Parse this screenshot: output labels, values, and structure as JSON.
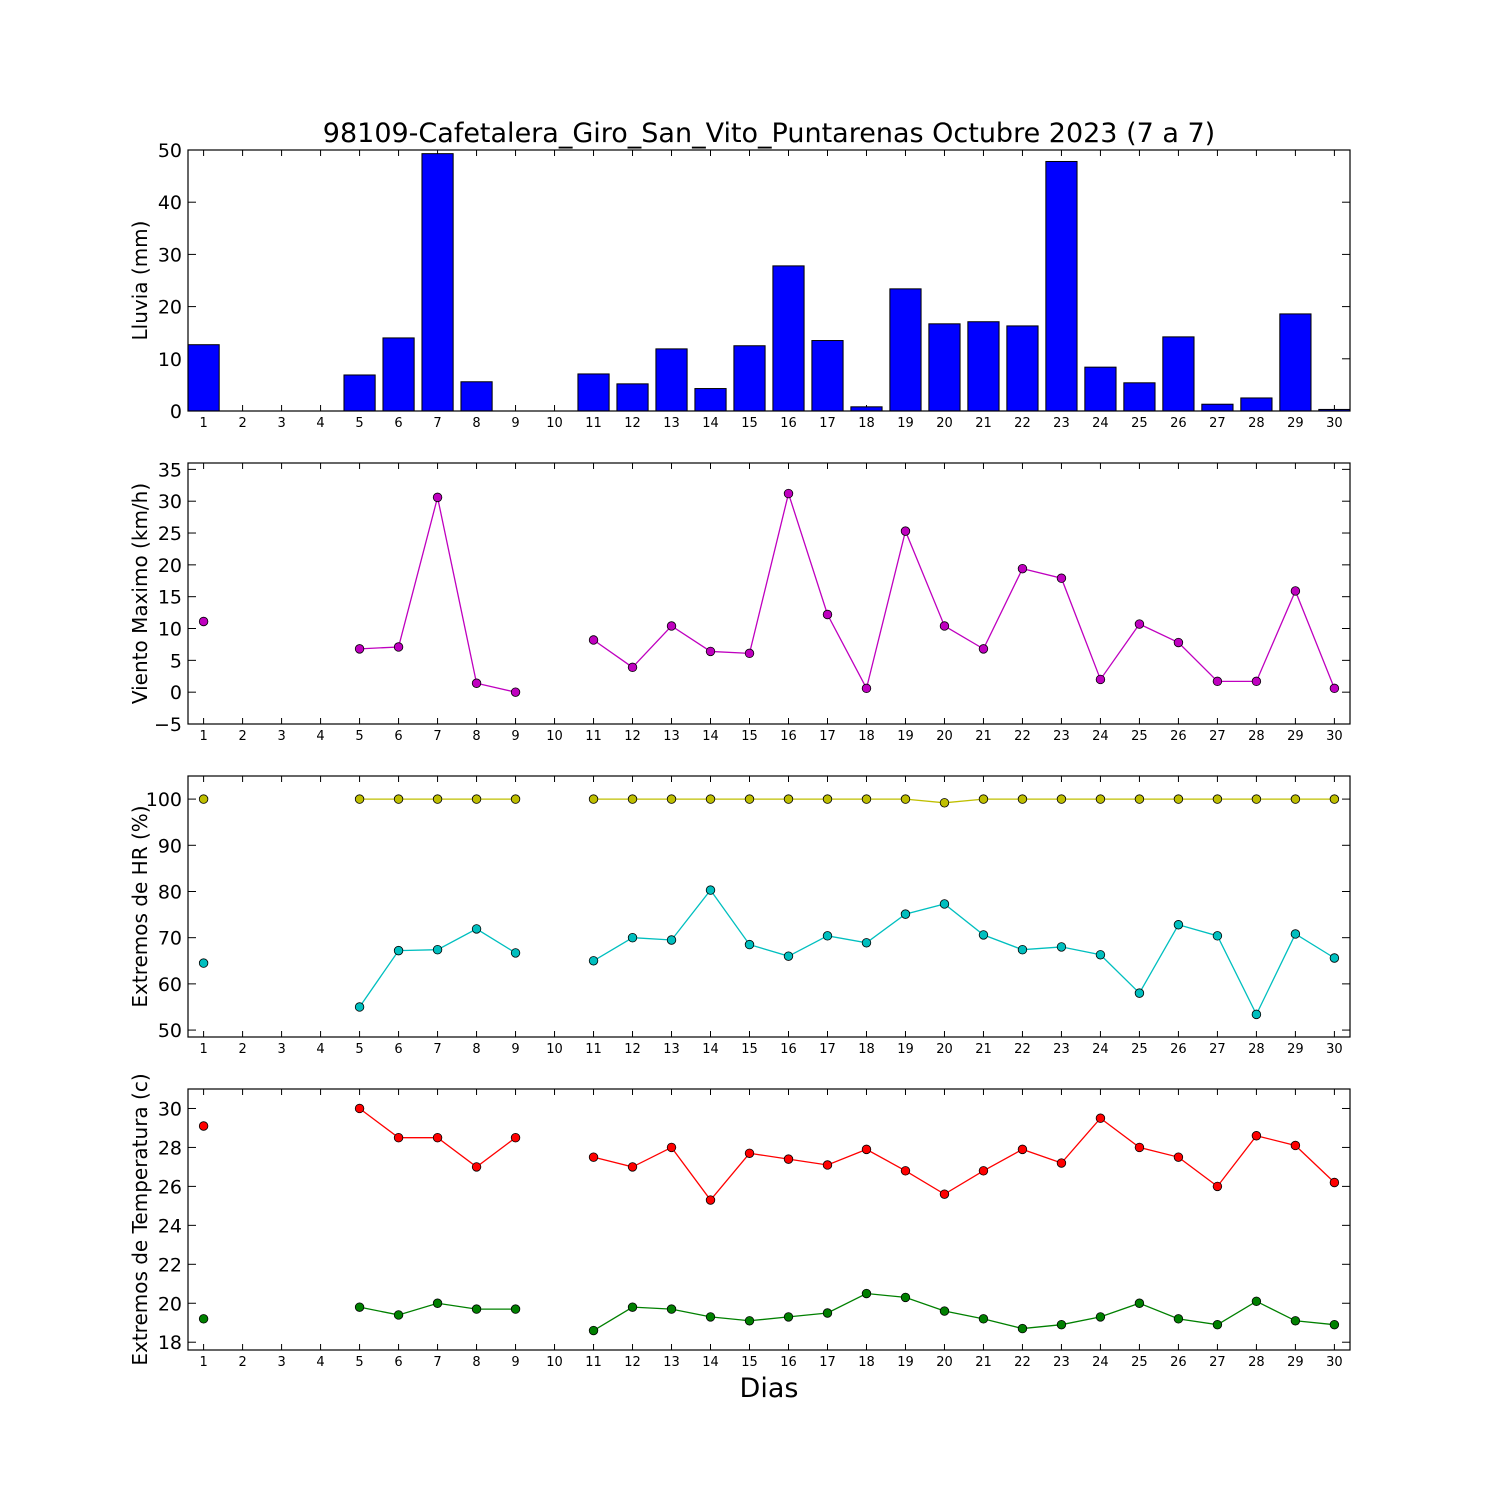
{
  "title": "98109-Cafetalera_Giro_San_Vito_Puntarenas Octubre 2023  (7 a 7)",
  "xlabel": "Dias",
  "chart_data": [
    {
      "type": "bar",
      "ylabel": "Lluvia (mm)",
      "ylim": [
        0,
        50
      ],
      "yticks": [
        0,
        10,
        20,
        30,
        40,
        50
      ],
      "x": [
        1,
        2,
        3,
        4,
        5,
        6,
        7,
        8,
        9,
        10,
        11,
        12,
        13,
        14,
        15,
        16,
        17,
        18,
        19,
        20,
        21,
        22,
        23,
        24,
        25,
        26,
        27,
        28,
        29,
        30
      ],
      "series": [
        {
          "color": "#0000ff",
          "values": [
            12.7,
            0,
            0,
            0,
            6.9,
            14,
            49.3,
            5.6,
            0,
            0,
            7.1,
            5.2,
            11.9,
            4.3,
            12.5,
            27.8,
            13.5,
            0.8,
            23.4,
            16.7,
            17.1,
            16.3,
            47.8,
            8.4,
            5.4,
            14.2,
            1.3,
            2.5,
            18.6,
            0.3
          ]
        }
      ]
    },
    {
      "type": "line",
      "ylabel": "Viento Maximo (km/h)",
      "ylim": [
        -5,
        36
      ],
      "yticks": [
        -5,
        0,
        5,
        10,
        15,
        20,
        25,
        30,
        35
      ],
      "x": [
        1,
        2,
        3,
        4,
        5,
        6,
        7,
        8,
        9,
        10,
        11,
        12,
        13,
        14,
        15,
        16,
        17,
        18,
        19,
        20,
        21,
        22,
        23,
        24,
        25,
        26,
        27,
        28,
        29,
        30
      ],
      "series": [
        {
          "color": "#bf00bf",
          "values": [
            11.1,
            null,
            null,
            null,
            6.8,
            7.1,
            30.6,
            1.4,
            0,
            null,
            8.2,
            3.9,
            10.4,
            6.4,
            6.1,
            31.2,
            12.2,
            0.6,
            25.3,
            10.4,
            6.8,
            19.4,
            17.9,
            2.0,
            10.7,
            7.8,
            1.7,
            1.7,
            15.9,
            0.6
          ]
        }
      ]
    },
    {
      "type": "line",
      "ylabel": "Extremos de HR (%)",
      "ylim": [
        48.5,
        105
      ],
      "yticks": [
        50,
        60,
        70,
        80,
        90,
        100
      ],
      "x": [
        1,
        2,
        3,
        4,
        5,
        6,
        7,
        8,
        9,
        10,
        11,
        12,
        13,
        14,
        15,
        16,
        17,
        18,
        19,
        20,
        21,
        22,
        23,
        24,
        25,
        26,
        27,
        28,
        29,
        30
      ],
      "series": [
        {
          "color": "#bfbf00",
          "values": [
            100,
            null,
            null,
            null,
            100,
            100,
            100,
            100,
            100,
            null,
            100,
            100,
            100,
            100,
            100,
            100,
            100,
            100,
            100,
            99.2,
            100,
            100,
            100,
            100,
            100,
            100,
            100,
            100,
            100,
            100
          ]
        },
        {
          "color": "#00bfbf",
          "values": [
            64.5,
            null,
            null,
            null,
            55,
            67.2,
            67.4,
            71.9,
            66.7,
            null,
            65,
            70,
            69.5,
            80.3,
            68.5,
            66,
            70.4,
            68.9,
            75.1,
            77.3,
            70.6,
            67.4,
            68,
            66.3,
            58,
            72.8,
            70.4,
            53.4,
            70.8,
            65.6
          ]
        }
      ]
    },
    {
      "type": "line",
      "ylabel": "Extremos de Temperatura (c)",
      "ylim": [
        17.6,
        31
      ],
      "yticks": [
        18,
        20,
        22,
        24,
        26,
        28,
        30
      ],
      "x": [
        1,
        2,
        3,
        4,
        5,
        6,
        7,
        8,
        9,
        10,
        11,
        12,
        13,
        14,
        15,
        16,
        17,
        18,
        19,
        20,
        21,
        22,
        23,
        24,
        25,
        26,
        27,
        28,
        29,
        30
      ],
      "series": [
        {
          "color": "#ff0000",
          "values": [
            29.1,
            null,
            null,
            null,
            30,
            28.5,
            28.5,
            27,
            28.5,
            null,
            27.5,
            27,
            28,
            25.3,
            27.7,
            27.4,
            27.1,
            27.9,
            26.8,
            25.6,
            26.8,
            27.9,
            27.2,
            29.5,
            28,
            27.5,
            26,
            28.6,
            28.1,
            26.2
          ]
        },
        {
          "color": "#008000",
          "values": [
            19.2,
            null,
            null,
            null,
            19.8,
            19.4,
            20,
            19.7,
            19.7,
            null,
            18.6,
            19.8,
            19.7,
            19.3,
            19.1,
            19.3,
            19.5,
            20.5,
            20.3,
            19.6,
            19.2,
            18.7,
            18.9,
            19.3,
            20,
            19.2,
            18.9,
            20.1,
            19.1,
            18.9
          ]
        }
      ]
    }
  ]
}
